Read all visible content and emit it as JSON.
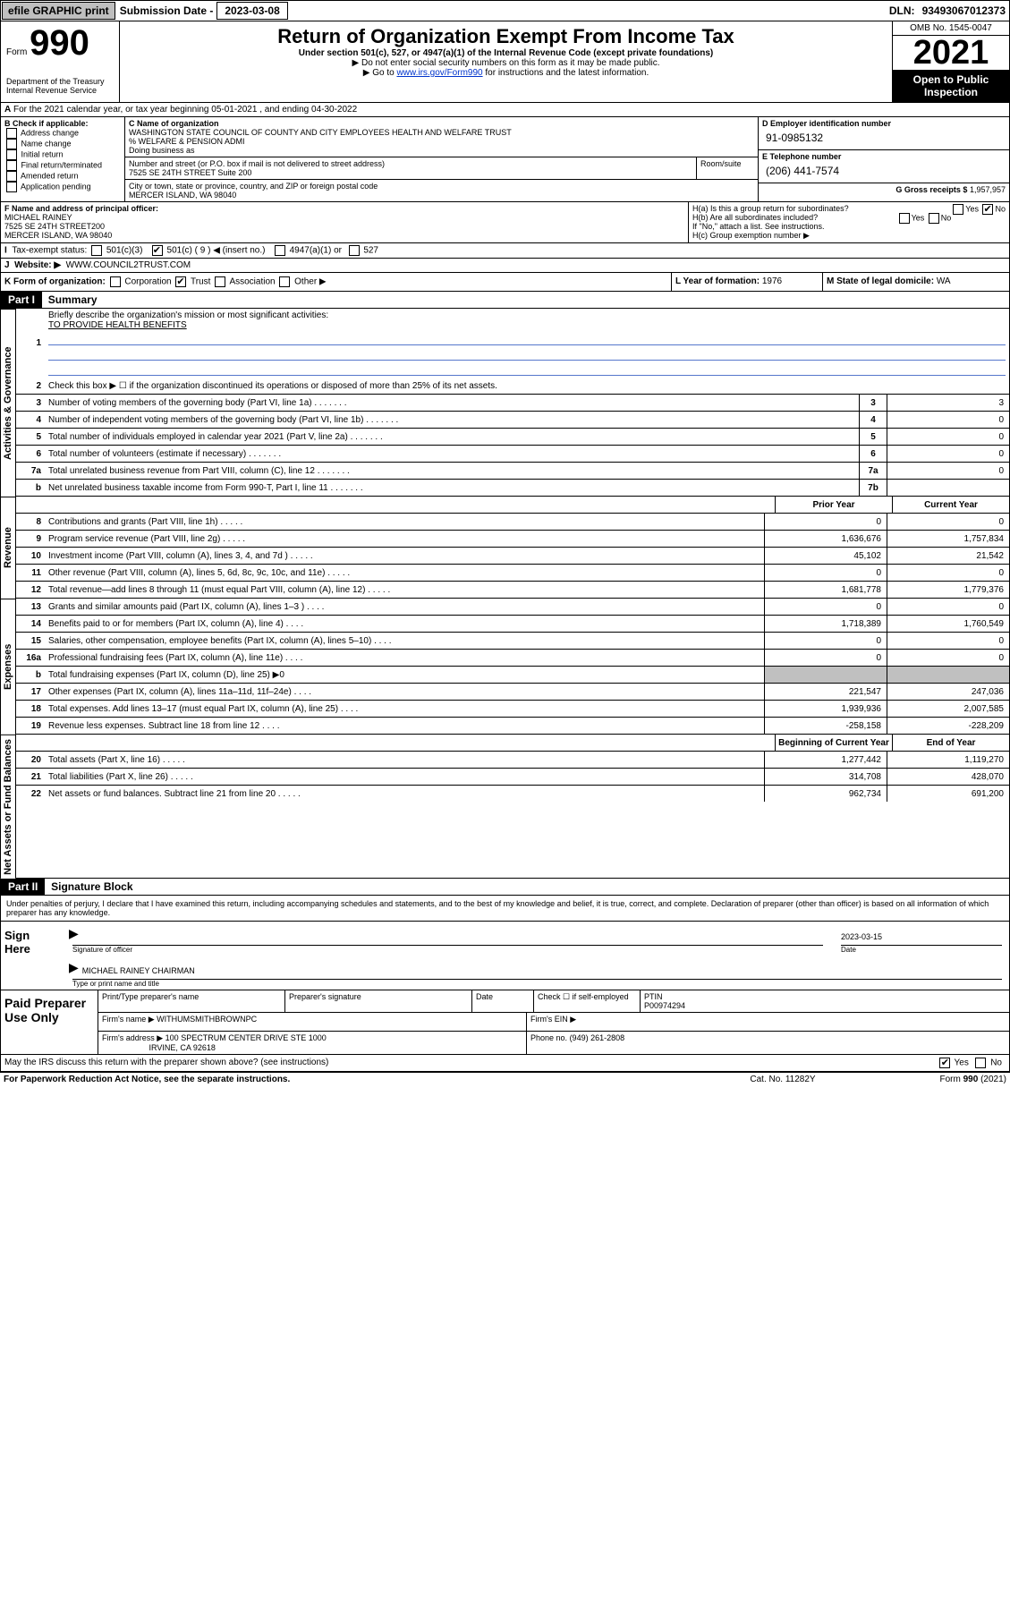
{
  "topbar": {
    "efile": "efile GRAPHIC print",
    "submission_label": "Submission Date -",
    "submission_date": "2023-03-08",
    "dln_label": "DLN:",
    "dln": "93493067012373"
  },
  "header": {
    "form_word": "Form",
    "form_num": "990",
    "title": "Return of Organization Exempt From Income Tax",
    "subtitle": "Under section 501(c), 527, or 4947(a)(1) of the Internal Revenue Code (except private foundations)",
    "line1": "▶ Do not enter social security numbers on this form as it may be made public.",
    "line2_pre": "▶ Go to ",
    "line2_link": "www.irs.gov/Form990",
    "line2_post": " for instructions and the latest information.",
    "omb": "OMB No. 1545-0047",
    "year": "2021",
    "open": "Open to Public Inspection",
    "dept": "Department of the Treasury",
    "irs": "Internal Revenue Service"
  },
  "section_a": {
    "line": "For the 2021 calendar year, or tax year beginning 05-01-2021   , and ending 04-30-2022",
    "b_label": "B Check if applicable:",
    "b_opts": [
      "Address change",
      "Name change",
      "Initial return",
      "Final return/terminated",
      "Amended return",
      "Application pending"
    ],
    "c_label": "C Name of organization",
    "org_name": "WASHINGTON STATE COUNCIL OF COUNTY AND CITY EMPLOYEES HEALTH AND WELFARE TRUST",
    "care_of": "% WELFARE & PENSION ADMI",
    "dba_label": "Doing business as",
    "addr_label": "Number and street (or P.O. box if mail is not delivered to street address)",
    "addr": "7525 SE 24TH STREET Suite 200",
    "room_label": "Room/suite",
    "city_label": "City or town, state or province, country, and ZIP or foreign postal code",
    "city": "MERCER ISLAND, WA  98040",
    "d_label": "D Employer identification number",
    "ein": "91-0985132",
    "e_label": "E Telephone number",
    "phone": "(206) 441-7574",
    "g_label": "G Gross receipts $",
    "gross": "1,957,957",
    "f_label": "F  Name and address of principal officer:",
    "officer": "MICHAEL RAINEY",
    "officer_addr1": "7525 SE 24TH STREET200",
    "officer_addr2": "MERCER ISLAND, WA  98040",
    "ha_label": "H(a)  Is this a group return for subordinates?",
    "hb_label": "H(b)  Are all subordinates included?",
    "hb_note": "If \"No,\" attach a list. See instructions.",
    "hc_label": "H(c)  Group exemption number ▶",
    "yes": "Yes",
    "no": "No"
  },
  "tax_exempt": {
    "label": "Tax-exempt status:",
    "c3": "501(c)(3)",
    "c9_pre": "501(c) (",
    "c9_num": "9",
    "c9_post": ") ◀ (insert no.)",
    "a1": "4947(a)(1) or",
    "s527": "527"
  },
  "website": {
    "label": "Website: ▶",
    "url": "WWW.COUNCIL2TRUST.COM"
  },
  "line_k": {
    "label": "K Form of organization:",
    "corp": "Corporation",
    "trust": "Trust",
    "assoc": "Association",
    "other": "Other ▶",
    "l_label": "L Year of formation:",
    "l_val": "1976",
    "m_label": "M State of legal domicile:",
    "m_val": "WA"
  },
  "parts": {
    "p1": "Part I",
    "p1_title": "Summary",
    "p2": "Part II",
    "p2_title": "Signature Block"
  },
  "mission": {
    "q": "Briefly describe the organization's mission or most significant activities:",
    "text": "TO PROVIDE HEALTH BENEFITS"
  },
  "vlabels": {
    "gov": "Activities & Governance",
    "rev": "Revenue",
    "exp": "Expenses",
    "net": "Net Assets or Fund Balances"
  },
  "govrows": [
    {
      "n": "2",
      "d": "Check this box ▶ ☐  if the organization discontinued its operations or disposed of more than 25% of its net assets."
    },
    {
      "n": "3",
      "d": "Number of voting members of the governing body (Part VI, line 1a)",
      "ln": "3",
      "v": "3"
    },
    {
      "n": "4",
      "d": "Number of independent voting members of the governing body (Part VI, line 1b)",
      "ln": "4",
      "v": "0"
    },
    {
      "n": "5",
      "d": "Total number of individuals employed in calendar year 2021 (Part V, line 2a)",
      "ln": "5",
      "v": "0"
    },
    {
      "n": "6",
      "d": "Total number of volunteers (estimate if necessary)",
      "ln": "6",
      "v": "0"
    },
    {
      "n": "7a",
      "d": "Total unrelated business revenue from Part VIII, column (C), line 12",
      "ln": "7a",
      "v": "0"
    },
    {
      "n": "b",
      "d": "Net unrelated business taxable income from Form 990-T, Part I, line 11",
      "ln": "7b",
      "v": ""
    }
  ],
  "col_headers": {
    "prior": "Prior Year",
    "current": "Current Year",
    "boy": "Beginning of Current Year",
    "eoy": "End of Year"
  },
  "revrows": [
    {
      "n": "8",
      "d": "Contributions and grants (Part VIII, line 1h)",
      "p": "0",
      "c": "0"
    },
    {
      "n": "9",
      "d": "Program service revenue (Part VIII, line 2g)",
      "p": "1,636,676",
      "c": "1,757,834"
    },
    {
      "n": "10",
      "d": "Investment income (Part VIII, column (A), lines 3, 4, and 7d )",
      "p": "45,102",
      "c": "21,542"
    },
    {
      "n": "11",
      "d": "Other revenue (Part VIII, column (A), lines 5, 6d, 8c, 9c, 10c, and 11e)",
      "p": "0",
      "c": "0"
    },
    {
      "n": "12",
      "d": "Total revenue—add lines 8 through 11 (must equal Part VIII, column (A), line 12)",
      "p": "1,681,778",
      "c": "1,779,376"
    }
  ],
  "exprows": [
    {
      "n": "13",
      "d": "Grants and similar amounts paid (Part IX, column (A), lines 1–3 )",
      "p": "0",
      "c": "0"
    },
    {
      "n": "14",
      "d": "Benefits paid to or for members (Part IX, column (A), line 4)",
      "p": "1,718,389",
      "c": "1,760,549"
    },
    {
      "n": "15",
      "d": "Salaries, other compensation, employee benefits (Part IX, column (A), lines 5–10)",
      "p": "0",
      "c": "0"
    },
    {
      "n": "16a",
      "d": "Professional fundraising fees (Part IX, column (A), line 11e)",
      "p": "0",
      "c": "0"
    },
    {
      "n": "b",
      "d": "Total fundraising expenses (Part IX, column (D), line 25) ▶0",
      "gray": true
    },
    {
      "n": "17",
      "d": "Other expenses (Part IX, column (A), lines 11a–11d, 11f–24e)",
      "p": "221,547",
      "c": "247,036"
    },
    {
      "n": "18",
      "d": "Total expenses. Add lines 13–17 (must equal Part IX, column (A), line 25)",
      "p": "1,939,936",
      "c": "2,007,585"
    },
    {
      "n": "19",
      "d": "Revenue less expenses. Subtract line 18 from line 12",
      "p": "-258,158",
      "c": "-228,209"
    }
  ],
  "netrows": [
    {
      "n": "20",
      "d": "Total assets (Part X, line 16)",
      "p": "1,277,442",
      "c": "1,119,270"
    },
    {
      "n": "21",
      "d": "Total liabilities (Part X, line 26)",
      "p": "314,708",
      "c": "428,070"
    },
    {
      "n": "22",
      "d": "Net assets or fund balances. Subtract line 21 from line 20",
      "p": "962,734",
      "c": "691,200"
    }
  ],
  "sig": {
    "declare": "Under penalties of perjury, I declare that I have examined this return, including accompanying schedules and statements, and to the best of my knowledge and belief, it is true, correct, and complete. Declaration of preparer (other than officer) is based on all information of which preparer has any knowledge.",
    "sign_here": "Sign Here",
    "sig_officer_label": "Signature of officer",
    "date_label": "Date",
    "date": "2023-03-15",
    "name": "MICHAEL RAINEY CHAIRMAN",
    "name_label": "Type or print name and title",
    "paid": "Paid Preparer Use Only",
    "prep_name_label": "Print/Type preparer's name",
    "prep_sig_label": "Preparer's signature",
    "check_label": "Check ☐ if self-employed",
    "ptin_label": "PTIN",
    "ptin": "P00974294",
    "firm_name_label": "Firm's name     ▶",
    "firm_name": "WITHUMSMITHBROWNPC",
    "firm_ein_label": "Firm's EIN ▶",
    "firm_addr_label": "Firm's address ▶",
    "firm_addr1": "100 SPECTRUM CENTER DRIVE STE 1000",
    "firm_addr2": "IRVINE, CA  92618",
    "phone_label": "Phone no.",
    "phone": "(949) 261-2808",
    "discuss": "May the IRS discuss this return with the preparer shown above? (see instructions)"
  },
  "footer": {
    "left": "For Paperwork Reduction Act Notice, see the separate instructions.",
    "mid": "Cat. No. 11282Y",
    "right": "Form 990 (2021)"
  }
}
